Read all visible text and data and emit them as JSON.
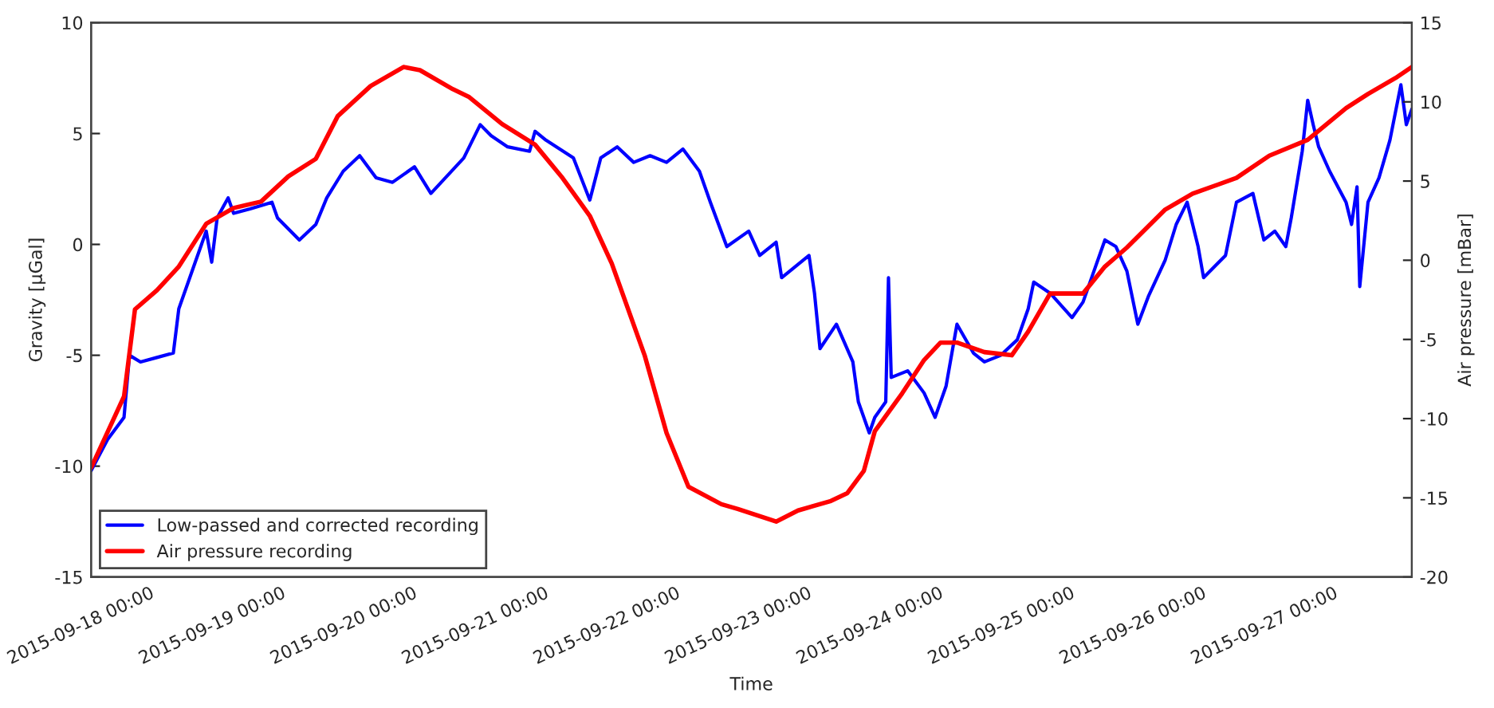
{
  "chart_data": {
    "type": "line",
    "xlabel": "Time",
    "ylabel": "Gravity [µGal]",
    "y2label": "Air pressure [mBar]",
    "xlim": [
      "2015-09-17T12:00",
      "2015-09-27T13:00"
    ],
    "xticks": [
      {
        "value": "2015-09-18",
        "label": "2015-09-18 00:00"
      },
      {
        "value": "2015-09-19",
        "label": "2015-09-19 00:00"
      },
      {
        "value": "2015-09-20",
        "label": "2015-09-20 00:00"
      },
      {
        "value": "2015-09-21",
        "label": "2015-09-21 00:00"
      },
      {
        "value": "2015-09-22",
        "label": "2015-09-22 00:00"
      },
      {
        "value": "2015-09-23",
        "label": "2015-09-23 00:00"
      },
      {
        "value": "2015-09-24",
        "label": "2015-09-24 00:00"
      },
      {
        "value": "2015-09-25",
        "label": "2015-09-25 00:00"
      },
      {
        "value": "2015-09-26",
        "label": "2015-09-26 00:00"
      },
      {
        "value": "2015-09-27",
        "label": "2015-09-27 00:00"
      }
    ],
    "ylim": [
      -15,
      10
    ],
    "yticks": [
      -15,
      -10,
      -5,
      0,
      5,
      10
    ],
    "y2lim": [
      -20,
      15
    ],
    "y2ticks": [
      -20,
      -15,
      -10,
      -5,
      0,
      5,
      10,
      15
    ],
    "grid": false,
    "legend": "bottom left",
    "marker": "none",
    "line_style": "solid",
    "series": [
      {
        "name": "Low-passed and corrected recording",
        "color": "#0000ff",
        "x": [
          "2015-09-17T12:00",
          "2015-09-17T15:00",
          "2015-09-17T18:00",
          "2015-09-17T19:00",
          "2015-09-17T21:00",
          "2015-09-18T00:00",
          "2015-09-18T03:00",
          "2015-09-18T04:00",
          "2015-09-18T07:00",
          "2015-09-18T09:00",
          "2015-09-18T10:00",
          "2015-09-18T11:00",
          "2015-09-18T13:00",
          "2015-09-18T14:00",
          "2015-09-18T17:00",
          "2015-09-18T21:00",
          "2015-09-18T22:00",
          "2015-09-19T02:00",
          "2015-09-19T05:00",
          "2015-09-19T07:00",
          "2015-09-19T10:00",
          "2015-09-19T13:00",
          "2015-09-19T16:00",
          "2015-09-19T19:00",
          "2015-09-19T23:00",
          "2015-09-20T02:00",
          "2015-09-20T05:00",
          "2015-09-20T08:00",
          "2015-09-20T11:00",
          "2015-09-20T13:00",
          "2015-09-20T16:00",
          "2015-09-20T20:00",
          "2015-09-20T21:00",
          "2015-09-20T23:00",
          "2015-09-21T04:00",
          "2015-09-21T07:00",
          "2015-09-21T09:00",
          "2015-09-21T12:00",
          "2015-09-21T15:00",
          "2015-09-21T18:00",
          "2015-09-21T21:00",
          "2015-09-22T00:00",
          "2015-09-22T03:00",
          "2015-09-22T05:00",
          "2015-09-22T08:00",
          "2015-09-22T12:00",
          "2015-09-22T14:00",
          "2015-09-22T17:00",
          "2015-09-22T18:00",
          "2015-09-22T23:00",
          "2015-09-23T00:00",
          "2015-09-23T01:00",
          "2015-09-23T04:00",
          "2015-09-23T07:00",
          "2015-09-23T08:00",
          "2015-09-23T10:00",
          "2015-09-23T11:00",
          "2015-09-23T13:00",
          "2015-09-23T13:30",
          "2015-09-23T14:00",
          "2015-09-23T17:00",
          "2015-09-23T20:00",
          "2015-09-23T22:00",
          "2015-09-24T00:00",
          "2015-09-24T02:00",
          "2015-09-24T05:00",
          "2015-09-24T07:00",
          "2015-09-24T10:00",
          "2015-09-24T13:00",
          "2015-09-24T15:00",
          "2015-09-24T16:00",
          "2015-09-24T19:00",
          "2015-09-24T23:00",
          "2015-09-25T01:00",
          "2015-09-25T03:00",
          "2015-09-25T05:00",
          "2015-09-25T07:00",
          "2015-09-25T09:00",
          "2015-09-25T11:00",
          "2015-09-25T13:00",
          "2015-09-25T16:00",
          "2015-09-25T18:00",
          "2015-09-25T20:00",
          "2015-09-25T22:00",
          "2015-09-25T23:00",
          "2015-09-26T03:00",
          "2015-09-26T05:00",
          "2015-09-26T08:00",
          "2015-09-26T10:00",
          "2015-09-26T12:00",
          "2015-09-26T14:00",
          "2015-09-26T15:00",
          "2015-09-26T17:00",
          "2015-09-26T18:00",
          "2015-09-26T19:00",
          "2015-09-26T20:00",
          "2015-09-26T22:00",
          "2015-09-27T01:00",
          "2015-09-27T02:00",
          "2015-09-27T03:00",
          "2015-09-27T03:30",
          "2015-09-27T05:00",
          "2015-09-27T07:00",
          "2015-09-27T09:00",
          "2015-09-27T11:00",
          "2015-09-27T12:00",
          "2015-09-27T13:00"
        ],
        "values": [
          -10.2,
          -8.8,
          -7.8,
          -5.0,
          -5.3,
          -5.1,
          -4.9,
          -2.9,
          -0.8,
          0.6,
          -0.8,
          1.2,
          2.1,
          1.4,
          1.6,
          1.9,
          1.2,
          0.2,
          0.9,
          2.1,
          3.3,
          4.0,
          3.0,
          2.8,
          3.5,
          2.3,
          3.1,
          3.9,
          5.4,
          4.9,
          4.4,
          4.2,
          5.1,
          4.7,
          3.9,
          2.0,
          3.9,
          4.4,
          3.7,
          4.0,
          3.7,
          4.3,
          3.3,
          1.9,
          -0.1,
          0.6,
          -0.5,
          0.1,
          -1.5,
          -0.5,
          -2.2,
          -4.7,
          -3.6,
          -5.3,
          -7.1,
          -8.5,
          -7.8,
          -7.1,
          -1.5,
          -6.0,
          -5.7,
          -6.7,
          -7.8,
          -6.4,
          -3.6,
          -4.9,
          -5.3,
          -5.0,
          -4.3,
          -2.9,
          -1.7,
          -2.2,
          -3.3,
          -2.6,
          -1.2,
          0.2,
          -0.1,
          -1.2,
          -3.6,
          -2.3,
          -0.7,
          0.9,
          1.9,
          -0.1,
          -1.5,
          -0.5,
          1.9,
          2.3,
          0.2,
          0.6,
          -0.1,
          1.2,
          4.2,
          6.5,
          5.4,
          4.4,
          3.3,
          1.9,
          0.9,
          2.6,
          -1.9,
          1.9,
          3.0,
          4.7,
          7.2,
          5.4,
          6.1
        ]
      },
      {
        "name": "Air pressure recording",
        "color": "#ff0000",
        "axis": "y2",
        "x": [
          "2015-09-17T12:00",
          "2015-09-17T18:00",
          "2015-09-17T20:00",
          "2015-09-18T00:00",
          "2015-09-18T04:00",
          "2015-09-18T09:00",
          "2015-09-18T14:00",
          "2015-09-18T19:00",
          "2015-09-19T00:00",
          "2015-09-19T05:00",
          "2015-09-19T09:00",
          "2015-09-19T15:00",
          "2015-09-19T21:00",
          "2015-09-20T00:00",
          "2015-09-20T06:00",
          "2015-09-20T09:00",
          "2015-09-20T15:00",
          "2015-09-20T21:00",
          "2015-09-21T02:00",
          "2015-09-21T07:00",
          "2015-09-21T11:00",
          "2015-09-21T17:00",
          "2015-09-21T21:00",
          "2015-09-22T01:00",
          "2015-09-22T07:00",
          "2015-09-22T10:00",
          "2015-09-22T17:00",
          "2015-09-22T21:00",
          "2015-09-23T03:00",
          "2015-09-23T06:00",
          "2015-09-23T09:00",
          "2015-09-23T11:00",
          "2015-09-23T16:00",
          "2015-09-23T20:00",
          "2015-09-23T23:00",
          "2015-09-24T02:00",
          "2015-09-24T07:00",
          "2015-09-24T12:00",
          "2015-09-24T15:00",
          "2015-09-24T19:00",
          "2015-09-25T01:00",
          "2015-09-25T05:00",
          "2015-09-25T09:00",
          "2015-09-25T16:00",
          "2015-09-25T21:00",
          "2015-09-26T05:00",
          "2015-09-26T11:00",
          "2015-09-26T18:00",
          "2015-09-27T01:00",
          "2015-09-27T05:00",
          "2015-09-27T10:00",
          "2015-09-27T13:00"
        ],
        "values": [
          -13.1,
          -8.6,
          -3.1,
          -1.9,
          -0.4,
          2.3,
          3.3,
          3.7,
          5.3,
          6.4,
          9.1,
          11.0,
          12.2,
          12.0,
          10.8,
          10.3,
          8.6,
          7.3,
          5.2,
          2.8,
          -0.2,
          -6.0,
          -10.9,
          -14.3,
          -15.4,
          -15.7,
          -16.5,
          -15.8,
          -15.2,
          -14.7,
          -13.3,
          -10.8,
          -8.4,
          -6.3,
          -5.2,
          -5.2,
          -5.8,
          -6.0,
          -4.5,
          -2.1,
          -2.1,
          -0.4,
          0.8,
          3.2,
          4.2,
          5.2,
          6.6,
          7.6,
          9.6,
          10.5,
          11.5,
          12.2
        ]
      }
    ]
  }
}
